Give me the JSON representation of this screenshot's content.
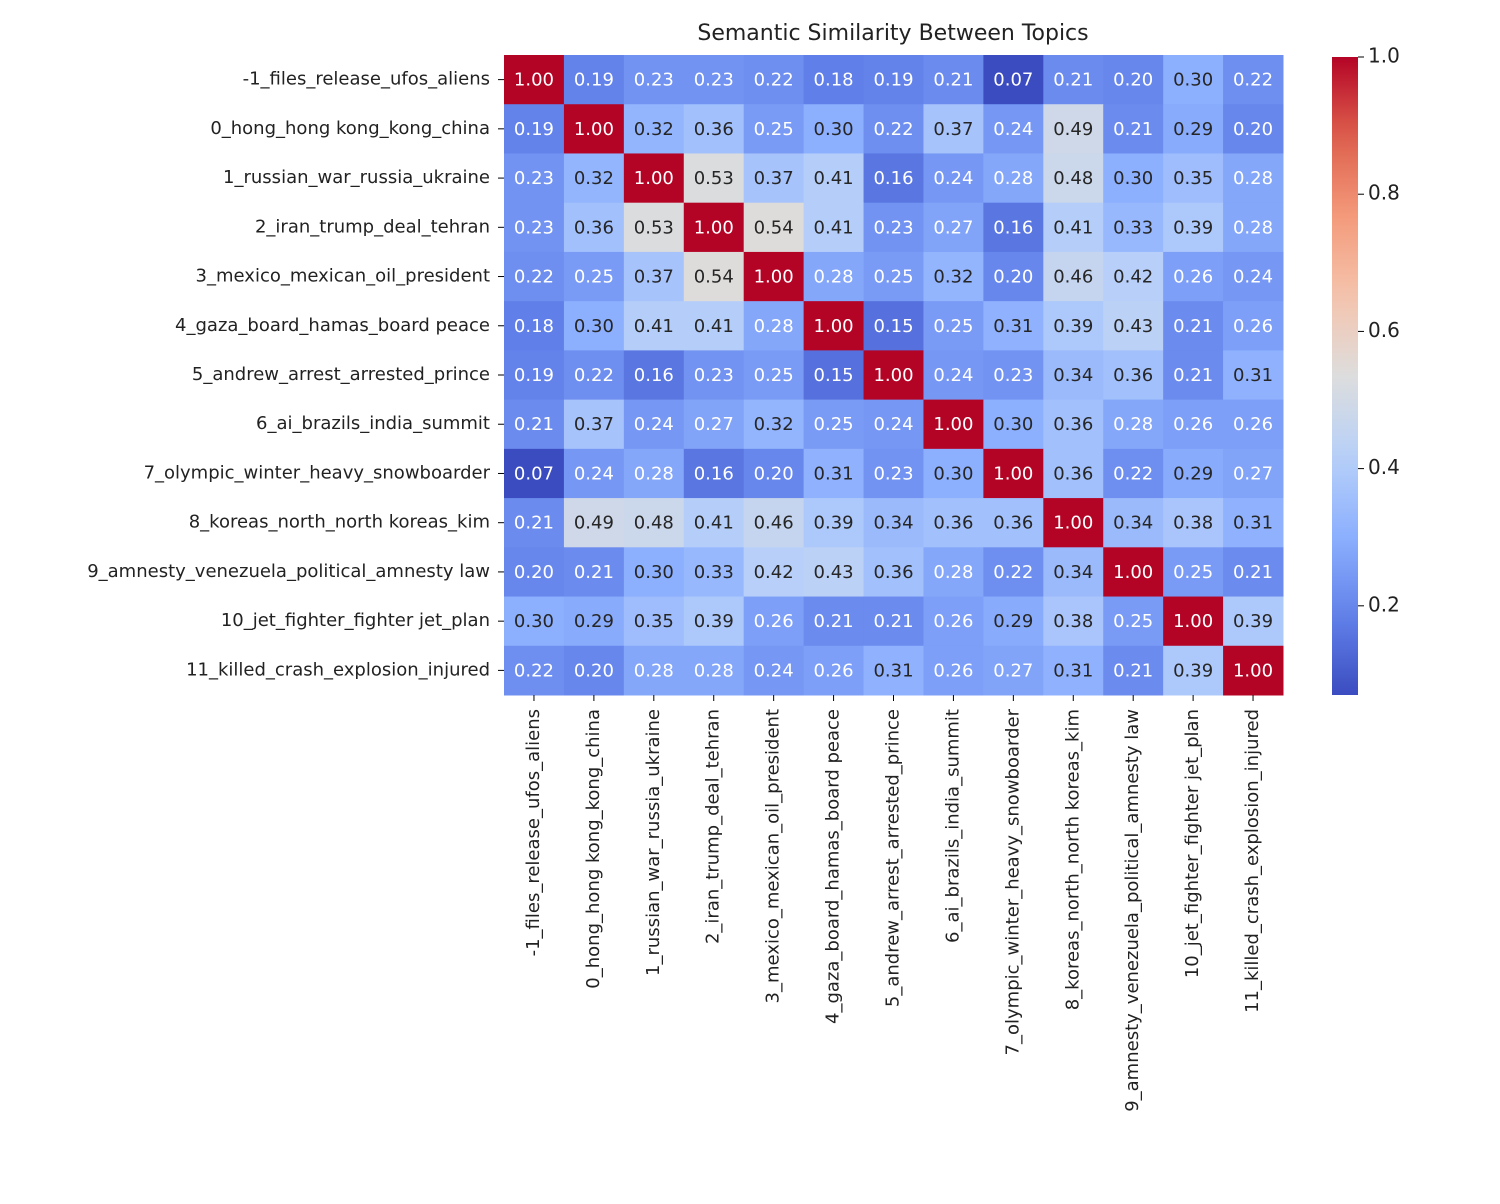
{
  "chart_data": {
    "type": "heatmap",
    "title": "Semantic Similarity Between Topics",
    "categories": [
      "-1_files_release_ufos_aliens",
      "0_hong_hong kong_kong_china",
      "1_russian_war_russia_ukraine",
      "2_iran_trump_deal_tehran",
      "3_mexico_mexican_oil_president",
      "4_gaza_board_hamas_board peace",
      "5_andrew_arrest_arrested_prince",
      "6_ai_brazils_india_summit",
      "7_olympic_winter_heavy_snowboarder",
      "8_koreas_north_north koreas_kim",
      "9_amnesty_venezuela_political_amnesty law",
      "10_jet_fighter_fighter jet_plan",
      "11_killed_crash_explosion_injured"
    ],
    "values": [
      [
        1.0,
        0.19,
        0.23,
        0.23,
        0.22,
        0.18,
        0.19,
        0.21,
        0.07,
        0.21,
        0.2,
        0.3,
        0.22
      ],
      [
        0.19,
        1.0,
        0.32,
        0.36,
        0.25,
        0.3,
        0.22,
        0.37,
        0.24,
        0.49,
        0.21,
        0.29,
        0.2
      ],
      [
        0.23,
        0.32,
        1.0,
        0.53,
        0.37,
        0.41,
        0.16,
        0.24,
        0.28,
        0.48,
        0.3,
        0.35,
        0.28
      ],
      [
        0.23,
        0.36,
        0.53,
        1.0,
        0.54,
        0.41,
        0.23,
        0.27,
        0.16,
        0.41,
        0.33,
        0.39,
        0.28
      ],
      [
        0.22,
        0.25,
        0.37,
        0.54,
        1.0,
        0.28,
        0.25,
        0.32,
        0.2,
        0.46,
        0.42,
        0.26,
        0.24
      ],
      [
        0.18,
        0.3,
        0.41,
        0.41,
        0.28,
        1.0,
        0.15,
        0.25,
        0.31,
        0.39,
        0.43,
        0.21,
        0.26
      ],
      [
        0.19,
        0.22,
        0.16,
        0.23,
        0.25,
        0.15,
        1.0,
        0.24,
        0.23,
        0.34,
        0.36,
        0.21,
        0.31
      ],
      [
        0.21,
        0.37,
        0.24,
        0.27,
        0.32,
        0.25,
        0.24,
        1.0,
        0.3,
        0.36,
        0.28,
        0.26,
        0.26
      ],
      [
        0.07,
        0.24,
        0.28,
        0.16,
        0.2,
        0.31,
        0.23,
        0.3,
        1.0,
        0.36,
        0.22,
        0.29,
        0.27
      ],
      [
        0.21,
        0.49,
        0.48,
        0.41,
        0.46,
        0.39,
        0.34,
        0.36,
        0.36,
        1.0,
        0.34,
        0.38,
        0.31
      ],
      [
        0.2,
        0.21,
        0.3,
        0.33,
        0.42,
        0.43,
        0.36,
        0.28,
        0.22,
        0.34,
        1.0,
        0.25,
        0.21
      ],
      [
        0.3,
        0.29,
        0.35,
        0.39,
        0.26,
        0.21,
        0.21,
        0.26,
        0.29,
        0.38,
        0.25,
        1.0,
        0.39
      ],
      [
        0.22,
        0.2,
        0.28,
        0.28,
        0.24,
        0.26,
        0.31,
        0.26,
        0.27,
        0.31,
        0.21,
        0.39,
        1.0
      ]
    ],
    "value_labels": [
      [
        "1.00",
        "0.19",
        "0.23",
        "0.23",
        "0.22",
        "0.18",
        "0.19",
        "0.21",
        "0.07",
        "0.21",
        "0.20",
        "0.30",
        "0.22"
      ],
      [
        "0.19",
        "1.00",
        "0.32",
        "0.36",
        "0.25",
        "0.30",
        "0.22",
        "0.37",
        "0.24",
        "0.49",
        "0.21",
        "0.29",
        "0.20"
      ],
      [
        "0.23",
        "0.32",
        "1.00",
        "0.53",
        "0.37",
        "0.41",
        "0.16",
        "0.24",
        "0.28",
        "0.48",
        "0.30",
        "0.35",
        "0.28"
      ],
      [
        "0.23",
        "0.36",
        "0.53",
        "1.00",
        "0.54",
        "0.41",
        "0.23",
        "0.27",
        "0.16",
        "0.41",
        "0.33",
        "0.39",
        "0.28"
      ],
      [
        "0.22",
        "0.25",
        "0.37",
        "0.54",
        "1.00",
        "0.28",
        "0.25",
        "0.32",
        "0.20",
        "0.46",
        "0.42",
        "0.26",
        "0.24"
      ],
      [
        "0.18",
        "0.30",
        "0.41",
        "0.41",
        "0.28",
        "1.00",
        "0.15",
        "0.25",
        "0.31",
        "0.39",
        "0.43",
        "0.21",
        "0.26"
      ],
      [
        "0.19",
        "0.22",
        "0.16",
        "0.23",
        "0.25",
        "0.15",
        "1.00",
        "0.24",
        "0.23",
        "0.34",
        "0.36",
        "0.21",
        "0.31"
      ],
      [
        "0.21",
        "0.37",
        "0.24",
        "0.27",
        "0.32",
        "0.25",
        "0.24",
        "1.00",
        "0.30",
        "0.36",
        "0.28",
        "0.26",
        "0.26"
      ],
      [
        "0.07",
        "0.24",
        "0.28",
        "0.16",
        "0.20",
        "0.31",
        "0.23",
        "0.30",
        "1.00",
        "0.36",
        "0.22",
        "0.29",
        "0.27"
      ],
      [
        "0.21",
        "0.49",
        "0.48",
        "0.41",
        "0.46",
        "0.39",
        "0.34",
        "0.36",
        "0.36",
        "1.00",
        "0.34",
        "0.38",
        "0.31"
      ],
      [
        "0.20",
        "0.21",
        "0.30",
        "0.33",
        "0.42",
        "0.43",
        "0.36",
        "0.28",
        "0.22",
        "0.34",
        "1.00",
        "0.25",
        "0.21"
      ],
      [
        "0.30",
        "0.29",
        "0.35",
        "0.39",
        "0.26",
        "0.21",
        "0.21",
        "0.26",
        "0.29",
        "0.38",
        "0.25",
        "1.00",
        "0.39"
      ],
      [
        "0.22",
        "0.20",
        "0.28",
        "0.28",
        "0.24",
        "0.26",
        "0.31",
        "0.26",
        "0.27",
        "0.31",
        "0.21",
        "0.39",
        "1.00"
      ]
    ],
    "colormap": "coolwarm",
    "clim": [
      0.07,
      1.0
    ],
    "cticks": [
      0.2,
      0.4,
      0.6,
      0.8,
      {
        "value": 1.0,
        "label": "1.0"
      }
    ]
  }
}
